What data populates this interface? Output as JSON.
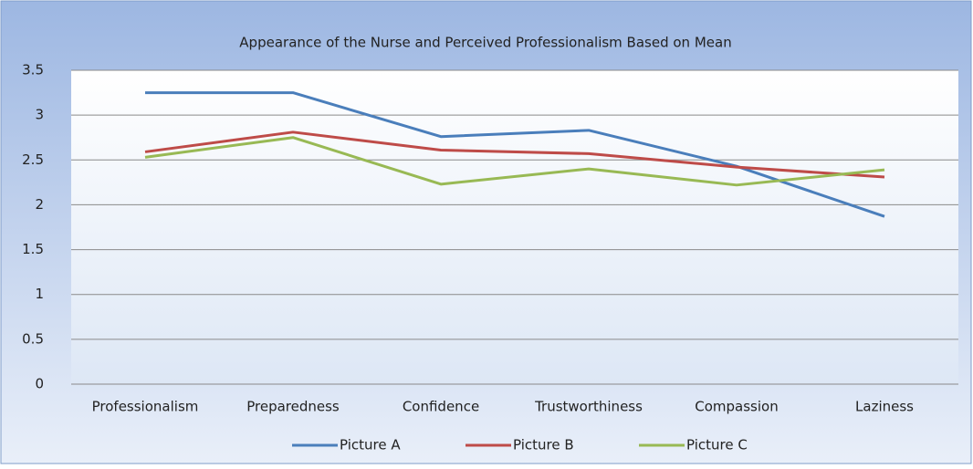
{
  "chart_data": {
    "type": "line",
    "title": "Appearance of the Nurse and Perceived Professionalism Based on Mean",
    "categories": [
      "Professionalism",
      "Preparedness",
      "Confidence",
      "Trustworthiness",
      "Compassion",
      "Laziness"
    ],
    "series": [
      {
        "name": "Picture A",
        "color": "#4a7ebb",
        "values": [
          3.25,
          3.25,
          2.76,
          2.83,
          2.43,
          1.87
        ]
      },
      {
        "name": "Picture B",
        "color": "#be4b48",
        "values": [
          2.59,
          2.81,
          2.61,
          2.57,
          2.42,
          2.31
        ]
      },
      {
        "name": "Picture C",
        "color": "#98b954",
        "values": [
          2.53,
          2.75,
          2.23,
          2.4,
          2.22,
          2.39
        ]
      }
    ],
    "ylim": [
      0,
      3.5
    ],
    "yticks": [
      0,
      0.5,
      1,
      1.5,
      2,
      2.5,
      3,
      3.5
    ],
    "grid": true,
    "legend": "bottom"
  }
}
